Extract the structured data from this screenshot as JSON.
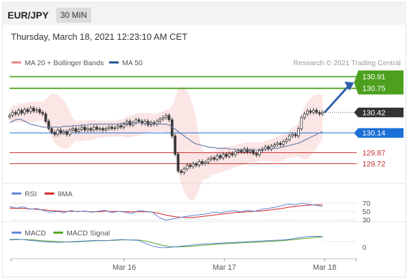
{
  "header": {
    "pair": "EUR/JPY",
    "interval": "30 MIN",
    "timestamp": "Thursday, March 18, 2021 12:23:10 AM CET"
  },
  "colors": {
    "bollinger": "#f08080",
    "ma50": "#1f4e8c",
    "candle": "#3a3a3a",
    "target_green": "#4ca01e",
    "support_blue": "#1b6fd6",
    "resistance_red": "#c83030",
    "current_label": "#333333",
    "rsi_line": "#5b7fd6",
    "rsi_ma": "#d62020",
    "macd_line": "#5b7fd6",
    "macd_signal": "#4ca01e"
  },
  "chart_data": [
    {
      "type": "candlestick",
      "panel": "price",
      "legend": [
        {
          "label": "MA 20 + Bollinger Bands",
          "color": "#f08080"
        },
        {
          "label": "MA 50",
          "color": "#1f4e8c"
        }
      ],
      "credit": "Research © 2021 Trading Central",
      "y_range": [
        129.5,
        131.0
      ],
      "x_ticks": [
        "Mar 16",
        "Mar 17",
        "Mar 18"
      ],
      "price_levels": [
        {
          "value": 130.91,
          "label": "130.91",
          "kind": "target",
          "color": "#4ca01e"
        },
        {
          "value": 130.75,
          "label": "130.75",
          "kind": "target",
          "color": "#4ca01e"
        },
        {
          "value": 130.42,
          "label": "130.42",
          "kind": "current",
          "color": "#333333"
        },
        {
          "value": 130.14,
          "label": "130.14",
          "kind": "support",
          "color": "#1b6fd6"
        },
        {
          "value": 129.87,
          "label": "129.87",
          "kind": "resistance",
          "color": "#c83030"
        },
        {
          "value": 129.72,
          "label": "129.72",
          "kind": "resistance",
          "color": "#c83030"
        }
      ],
      "closes": [
        130.38,
        130.42,
        130.4,
        130.45,
        130.41,
        130.46,
        130.43,
        130.48,
        130.44,
        130.46,
        130.42,
        130.4,
        130.3,
        130.2,
        130.15,
        130.12,
        130.18,
        130.14,
        130.16,
        130.12,
        130.18,
        130.2,
        130.16,
        130.19,
        130.22,
        130.18,
        130.2,
        130.18,
        130.22,
        130.19,
        130.2,
        130.18,
        130.2,
        130.22,
        130.2,
        130.21,
        130.24,
        130.22,
        130.26,
        130.3,
        130.25,
        130.28,
        130.32,
        130.3,
        130.27,
        130.3,
        130.25,
        130.28,
        130.26,
        130.3,
        130.33,
        130.35,
        130.38,
        130.32,
        130.1,
        129.85,
        129.62,
        129.6,
        129.65,
        129.7,
        129.68,
        129.72,
        129.7,
        129.75,
        129.72,
        129.74,
        129.78,
        129.8,
        129.78,
        129.83,
        129.8,
        129.85,
        129.82,
        129.86,
        129.84,
        129.88,
        129.9,
        129.88,
        129.92,
        129.88,
        129.9,
        129.86,
        129.84,
        129.9,
        129.92,
        129.95,
        129.92,
        129.96,
        129.98,
        130.0,
        129.98,
        130.02,
        130.05,
        130.1,
        130.12,
        130.1,
        130.2,
        130.35,
        130.4,
        130.44,
        130.42,
        130.45,
        130.42,
        130.4,
        130.42
      ],
      "ma50": [
        130.28,
        130.3,
        130.32,
        130.33,
        130.32,
        130.3,
        130.28,
        130.26,
        130.25,
        130.24,
        130.23,
        130.22,
        130.22,
        130.22,
        130.22,
        130.22,
        130.22,
        130.22,
        130.23,
        130.23,
        130.23,
        130.24,
        130.24,
        130.24,
        130.25,
        130.25,
        130.25,
        130.26,
        130.26,
        130.26,
        130.26,
        130.26,
        130.26,
        130.26,
        130.26,
        130.26,
        130.26,
        130.27,
        130.27,
        130.27,
        130.28,
        130.28,
        130.28,
        130.28,
        130.28,
        130.27,
        130.27,
        130.26,
        130.26,
        130.26,
        130.26,
        130.26,
        130.26,
        130.25,
        130.22,
        130.19,
        130.16,
        130.13,
        130.1,
        130.07,
        130.04,
        130.01,
        129.99,
        129.98,
        129.97,
        129.96,
        129.95,
        129.94,
        129.94,
        129.93,
        129.93,
        129.93,
        129.93,
        129.92,
        129.92,
        129.92,
        129.91,
        129.91,
        129.91,
        129.91,
        129.91,
        129.91,
        129.91,
        129.91,
        129.91,
        129.92,
        129.92,
        129.92,
        129.93,
        129.93,
        129.94,
        129.95,
        129.96,
        129.97,
        129.98,
        129.99,
        130.0,
        130.02,
        130.04,
        130.06,
        130.08,
        130.1,
        130.12,
        130.14,
        130.16
      ],
      "target_arrow": {
        "from_value": 130.42,
        "to_value": 130.83
      }
    },
    {
      "type": "line",
      "panel": "rsi",
      "legend": [
        {
          "label": "RSI",
          "color": "#5b7fd6"
        },
        {
          "label": "9MA",
          "color": "#d62020"
        }
      ],
      "levels": [
        {
          "value": 70,
          "label": "70"
        },
        {
          "value": 50,
          "label": "50"
        },
        {
          "value": 30,
          "label": "30"
        }
      ],
      "series": [
        {
          "name": "RSI",
          "values": [
            62,
            58,
            61,
            55,
            57,
            52,
            48,
            50,
            47,
            52,
            49,
            51,
            48,
            50,
            53,
            47,
            50,
            48,
            45,
            52,
            50,
            48,
            35,
            28,
            32,
            35,
            38,
            40,
            42,
            44,
            48,
            46,
            50,
            52,
            49,
            53,
            50,
            55,
            57,
            60,
            64,
            68,
            66,
            70,
            67,
            65,
            62
          ]
        },
        {
          "name": "9MA",
          "values": [
            58,
            57,
            57,
            56,
            55,
            54,
            52,
            51,
            50,
            50,
            50,
            50,
            49,
            49,
            50,
            50,
            50,
            49,
            49,
            49,
            49,
            48,
            45,
            41,
            38,
            36,
            35,
            35,
            37,
            39,
            41,
            43,
            45,
            47,
            48,
            49,
            50,
            51,
            53,
            55,
            57,
            60,
            62,
            64,
            65,
            66,
            66
          ]
        }
      ]
    },
    {
      "type": "line",
      "panel": "macd",
      "legend": [
        {
          "label": "MACD",
          "color": "#5b7fd6"
        },
        {
          "label": "MACD Signal",
          "color": "#4ca01e"
        }
      ],
      "levels": [
        {
          "value": 0,
          "label": "0"
        }
      ],
      "series": [
        {
          "name": "MACD",
          "values": [
            0.05,
            0.06,
            0.04,
            0.02,
            0.0,
            -0.01,
            -0.02,
            -0.01,
            0.0,
            0.01,
            0.02,
            0.03,
            0.02,
            0.04,
            0.05,
            0.04,
            0.03,
            -0.05,
            -0.12,
            -0.15,
            -0.14,
            -0.12,
            -0.1,
            -0.08,
            -0.06,
            -0.05,
            -0.04,
            -0.03,
            -0.02,
            -0.01,
            0.0,
            0.01,
            0.02,
            0.03,
            0.04,
            0.06,
            0.09,
            0.12,
            0.13,
            0.12
          ]
        },
        {
          "name": "MACD Signal",
          "values": [
            0.04,
            0.05,
            0.05,
            0.04,
            0.02,
            0.01,
            0.0,
            -0.01,
            -0.01,
            0.0,
            0.01,
            0.02,
            0.02,
            0.03,
            0.04,
            0.04,
            0.04,
            0.01,
            -0.04,
            -0.09,
            -0.12,
            -0.13,
            -0.12,
            -0.11,
            -0.09,
            -0.08,
            -0.06,
            -0.05,
            -0.04,
            -0.03,
            -0.02,
            -0.01,
            0.0,
            0.01,
            0.02,
            0.04,
            0.06,
            0.08,
            0.1,
            0.11
          ]
        }
      ]
    }
  ]
}
